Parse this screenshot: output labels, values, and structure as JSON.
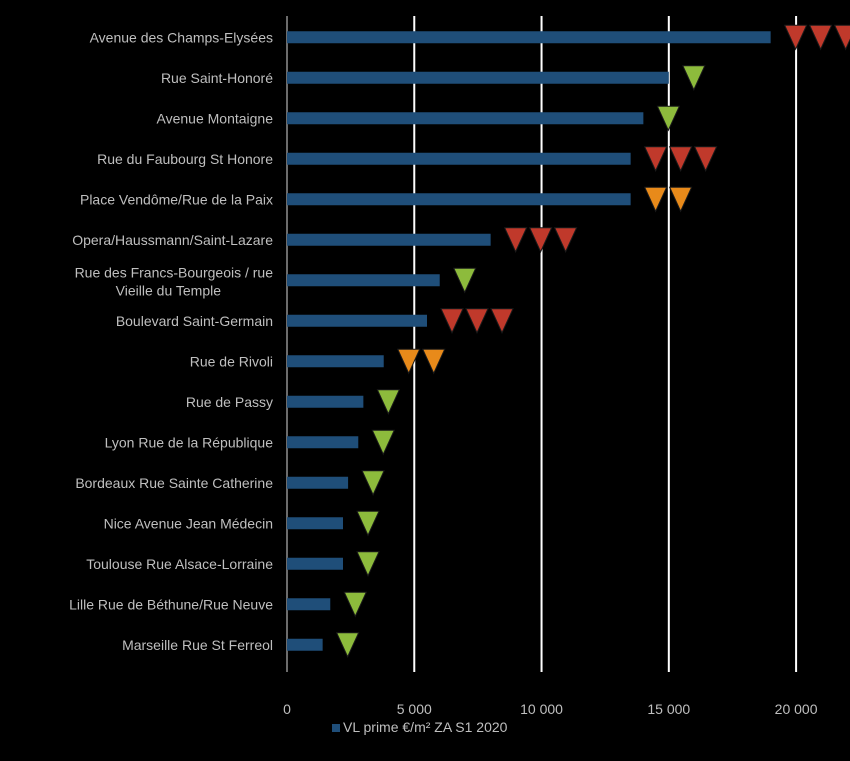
{
  "chart_data": {
    "type": "bar",
    "orientation": "horizontal",
    "categories": [
      "Avenue des Champs-Elysées",
      "Rue Saint-Honoré",
      "Avenue Montaigne",
      "Rue du Faubourg St Honore",
      "Place Vendôme/Rue de la Paix",
      "Opera/Haussmann/Saint-Lazare",
      "Rue des Francs-Bourgeois / rue Vieille du Temple",
      "Boulevard Saint-Germain",
      "Rue de Rivoli",
      "Rue de Passy",
      "Lyon Rue de la République",
      "Bordeaux Rue Sainte Catherine",
      "Nice Avenue Jean Médecin",
      "Toulouse Rue Alsace-Lorraine",
      "Lille Rue de Béthune/Rue Neuve",
      "Marseille Rue St Ferreol"
    ],
    "category_lines": [
      [
        "Avenue des Champs-Elysées"
      ],
      [
        "Rue Saint-Honoré"
      ],
      [
        "Avenue Montaigne"
      ],
      [
        "Rue du Faubourg St Honore"
      ],
      [
        "Place Vendôme/Rue de la Paix"
      ],
      [
        "Opera/Haussmann/Saint-Lazare"
      ],
      [
        "Rue des Francs-Bourgeois / rue",
        "Vieille du Temple"
      ],
      [
        "Boulevard Saint-Germain"
      ],
      [
        "Rue de Rivoli"
      ],
      [
        "Rue de Passy"
      ],
      [
        "Lyon Rue de la République"
      ],
      [
        "Bordeaux Rue Sainte Catherine"
      ],
      [
        "Nice Avenue Jean Médecin"
      ],
      [
        "Toulouse Rue Alsace-Lorraine"
      ],
      [
        "Lille Rue de Béthune/Rue Neuve"
      ],
      [
        "Marseille Rue St Ferreol"
      ]
    ],
    "series": [
      {
        "name": "VL prime €/m² ZA S1 2020",
        "color": "#1f4e79",
        "values": [
          19000,
          15000,
          14000,
          13500,
          13500,
          8000,
          6000,
          5500,
          3800,
          3000,
          2800,
          2400,
          2200,
          2200,
          1700,
          1400
        ]
      }
    ],
    "markers": [
      {
        "count": 3,
        "color": "#c0392b"
      },
      {
        "count": 1,
        "color": "#8dbb3c"
      },
      {
        "count": 1,
        "color": "#8dbb3c"
      },
      {
        "count": 3,
        "color": "#c0392b"
      },
      {
        "count": 2,
        "color": "#e88a1a"
      },
      {
        "count": 3,
        "color": "#c0392b"
      },
      {
        "count": 1,
        "color": "#8dbb3c"
      },
      {
        "count": 3,
        "color": "#c0392b"
      },
      {
        "count": 2,
        "color": "#e88a1a"
      },
      {
        "count": 1,
        "color": "#8dbb3c"
      },
      {
        "count": 1,
        "color": "#8dbb3c"
      },
      {
        "count": 1,
        "color": "#8dbb3c"
      },
      {
        "count": 1,
        "color": "#8dbb3c"
      },
      {
        "count": 1,
        "color": "#8dbb3c"
      },
      {
        "count": 1,
        "color": "#8dbb3c"
      },
      {
        "count": 1,
        "color": "#8dbb3c"
      }
    ],
    "xlim": [
      0,
      22000
    ],
    "xticks": [
      0,
      5000,
      10000,
      15000,
      20000
    ],
    "xtick_labels": [
      "0",
      "5 000",
      "10 000",
      "15 000",
      "20 000"
    ],
    "grid": true,
    "legend_position": "bottom",
    "title": "",
    "xlabel": "",
    "ylabel": ""
  }
}
